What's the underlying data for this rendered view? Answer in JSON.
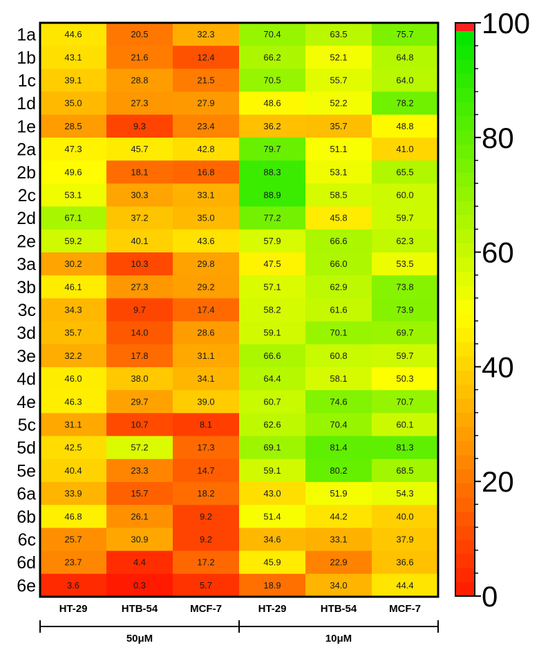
{
  "chart_data": {
    "type": "heatmap",
    "rows": [
      "1a",
      "1b",
      "1c",
      "1d",
      "1e",
      "2a",
      "2b",
      "2c",
      "2d",
      "2e",
      "3a",
      "3b",
      "3c",
      "3d",
      "3e",
      "4d",
      "4e",
      "5c",
      "5d",
      "5e",
      "6a",
      "6b",
      "6c",
      "6d",
      "6e"
    ],
    "columns": [
      "HT-29",
      "HTB-54",
      "MCF-7",
      "HT-29",
      "HTB-54",
      "MCF-7"
    ],
    "column_groups": [
      {
        "label": "50μM",
        "span": 3
      },
      {
        "label": "10μM",
        "span": 3
      }
    ],
    "values": [
      [
        "44.6",
        "20.5",
        "32.3",
        "70.4",
        "63.5",
        "75.7"
      ],
      [
        "43.1",
        "21.6",
        "12.4",
        "66.2",
        "52.1",
        "64.8"
      ],
      [
        "39.1",
        "28.8",
        "21.5",
        "70.5",
        "55.7",
        "64.0"
      ],
      [
        "35.0",
        "27.3",
        "27.9",
        "48.6",
        "52.2",
        "78.2"
      ],
      [
        "28.5",
        "9.3",
        "23.4",
        "36.2",
        "35.7",
        "48.8"
      ],
      [
        "47.3",
        "45.7",
        "42.8",
        "79.7",
        "51.1",
        "41.0"
      ],
      [
        "49.6",
        "18.1",
        "16.8",
        "88.3",
        "53.1",
        "65.5"
      ],
      [
        "53.1",
        "30.3",
        "33.1",
        "88.9",
        "58.5",
        "60.0"
      ],
      [
        "67.1",
        "37.2",
        "35.0",
        "77.2",
        "45.8",
        "59.7"
      ],
      [
        "59.2",
        "40.1",
        "43.6",
        "57.9",
        "66.6",
        "62.3"
      ],
      [
        "30.2",
        "10.3",
        "29.8",
        "47.5",
        "66.0",
        "53.5"
      ],
      [
        "46.1",
        "27.3",
        "29.2",
        "57.1",
        "62.9",
        "73.8"
      ],
      [
        "34.3",
        "9.7",
        "17.4",
        "58.2",
        "61.6",
        "73.9"
      ],
      [
        "35.7",
        "14.0",
        "28.6",
        "59.1",
        "70.1",
        "69.7"
      ],
      [
        "32.2",
        "17.8",
        "31.1",
        "66.6",
        "60.8",
        "59.7"
      ],
      [
        "46.0",
        "38.0",
        "34.1",
        "64.4",
        "58.1",
        "50.3"
      ],
      [
        "46.3",
        "29.7",
        "39.0",
        "60.7",
        "74.6",
        "70.7"
      ],
      [
        "31.1",
        "10.7",
        "8.1",
        "62.6",
        "70.4",
        "60.1"
      ],
      [
        "42.5",
        "57.2",
        "17.3",
        "69.1",
        "81.4",
        "81.3"
      ],
      [
        "40.4",
        "23.3",
        "14.7",
        "59.1",
        "80.2",
        "68.5"
      ],
      [
        "33.9",
        "15.7",
        "18.2",
        "43.0",
        "51.9",
        "54.3"
      ],
      [
        "46.8",
        "26.1",
        "9.2",
        "51.4",
        "44.2",
        "40.0"
      ],
      [
        "25.7",
        "30.9",
        "9.2",
        "34.6",
        "33.1",
        "37.9"
      ],
      [
        "23.7",
        "4.4",
        "17.2",
        "45.9",
        "22.9",
        "36.6"
      ],
      [
        "3.6",
        "0.3",
        "5.7",
        "18.9",
        "34.0",
        "44.4"
      ]
    ],
    "colorbar": {
      "ticks": [
        "0",
        "20",
        "40",
        "60",
        "80",
        "100"
      ],
      "range": [
        0,
        100
      ],
      "colors": {
        "low": "#ff1a00",
        "mid": "#ffff00",
        "high": "#00e600",
        "cap": "#ff2020"
      }
    }
  }
}
